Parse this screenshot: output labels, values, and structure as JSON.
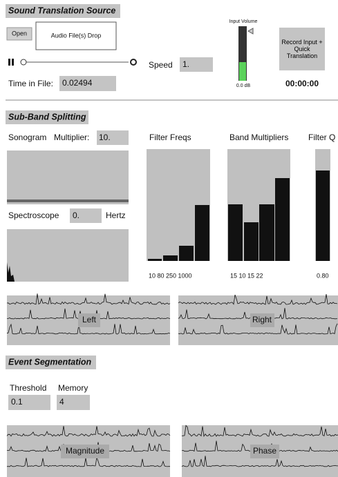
{
  "source": {
    "title": "Sound Translation Source",
    "open": "Open",
    "drop": "Audio File(s) Drop",
    "speed_label": "Speed",
    "speed": "1.",
    "time_label": "Time in File:",
    "time": "0.02494",
    "volume_label": "Input Volume",
    "volume": "0.0 dB",
    "record": "Record Input + Quick Translation",
    "clock": "00:00:00"
  },
  "subband": {
    "title": "Sub-Band Splitting",
    "sonogram": "Sonogram",
    "multiplier_label": "Multiplier:",
    "multiplier": "10.",
    "spectroscope": "Spectroscope",
    "hertz_value": "0.",
    "hertz": "Hertz",
    "filter_freqs": "Filter Freqs",
    "band_multipliers": "Band Multipliers",
    "filter_q": "Filter Q",
    "freqs_text": "10 80 250 1000",
    "mults_text": "15 10 15 22",
    "q_text": "0.80",
    "left": "Left",
    "right": "Right"
  },
  "events": {
    "title": "Event Segmentation",
    "threshold_label": "Threshold",
    "memory_label": "Memory",
    "threshold": "0.1",
    "memory": "4",
    "magnitude": "Magnitude",
    "phase": "Phase"
  }
}
